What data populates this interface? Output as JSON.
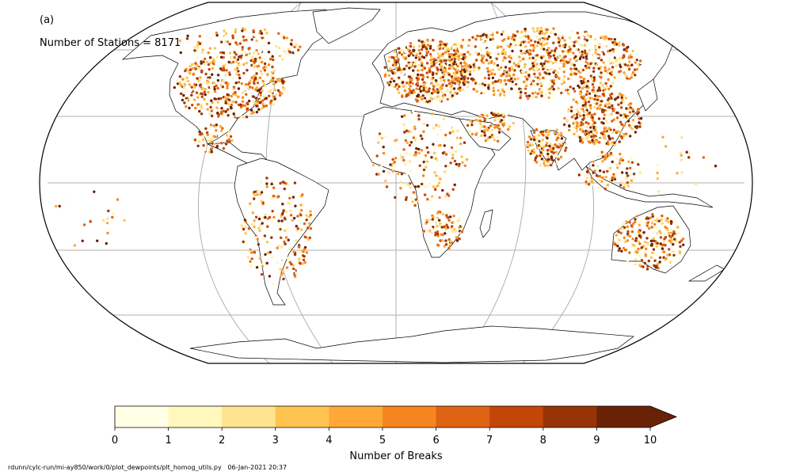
{
  "panel": {
    "label": "(a)",
    "stations_text": "Number of Stations = 8171"
  },
  "colorbar": {
    "title": "Number of Breaks",
    "ticks": [
      "0",
      "1",
      "2",
      "3",
      "4",
      "5",
      "6",
      "7",
      "8",
      "9",
      "10"
    ],
    "colors": [
      "#ffffe5",
      "#fff7bc",
      "#fee391",
      "#fec44f",
      "#fea838",
      "#f7851f",
      "#e06213",
      "#c24606",
      "#973304",
      "#6a2206"
    ],
    "extend": "max"
  },
  "footer": {
    "path": "rdunn/cylc-run/mi-ay850/work/0/plot_dewpoints/plt_homog_utils.py",
    "timestamp": "06-Jan-2021 20:37"
  },
  "map": {
    "projection": "Robinson",
    "gridlines": true,
    "legend": "colorbar below map"
  }
}
